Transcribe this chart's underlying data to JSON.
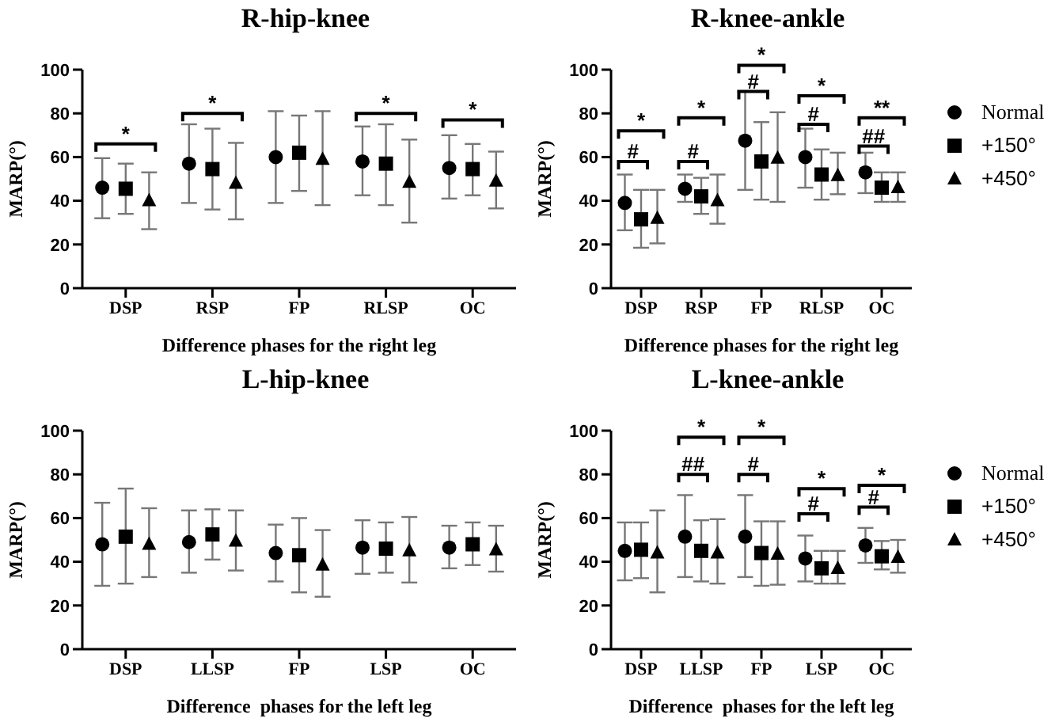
{
  "chart_data": [
    {
      "type": "scatter",
      "title": "R-hip-knee",
      "xlabel": "Difference phases for the right leg",
      "ylabel": "MARP(°)",
      "categories": [
        "DSP",
        "RSP",
        "FP",
        "RLSP",
        "OC"
      ],
      "ylim": [
        0,
        100
      ],
      "yticks": [
        0,
        20,
        40,
        60,
        80,
        100
      ],
      "legend": false,
      "series": [
        {
          "color": "#000000",
          "marker": "circle",
          "values": [
            46,
            57,
            60,
            58,
            55
          ],
          "errors": [
            [
              32,
              59.5
            ],
            [
              39,
              75
            ],
            [
              39,
              81
            ],
            [
              42.5,
              74
            ],
            [
              41,
              70
            ]
          ]
        },
        {
          "color": "#000000",
          "marker": "square",
          "values": [
            45.5,
            54.5,
            62,
            57,
            54.5
          ],
          "errors": [
            [
              34,
              57
            ],
            [
              36,
              73
            ],
            [
              44.5,
              79
            ],
            [
              38,
              75
            ],
            [
              42.5,
              66
            ]
          ]
        },
        {
          "color": "#000000",
          "marker": "triangle",
          "values": [
            40,
            48,
            59,
            48.5,
            49
          ],
          "errors": [
            [
              27,
              53
            ],
            [
              31.5,
              66.5
            ],
            [
              38,
              81
            ],
            [
              30,
              68
            ],
            [
              36.5,
              62.5
            ]
          ]
        }
      ],
      "annotations": [
        "*",
        "*",
        "*",
        "*"
      ]
    },
    {
      "type": "scatter",
      "title": "R-knee-ankle",
      "xlabel": "Difference phases for the right leg",
      "ylabel": "MARP(°)",
      "categories": [
        "DSP",
        "RSP",
        "FP",
        "RLSP",
        "OC"
      ],
      "ylim": [
        0,
        100
      ],
      "yticks": [
        0,
        20,
        40,
        60,
        80,
        100
      ],
      "legend": "right",
      "series": [
        {
          "name": "Normal",
          "color": "#000000",
          "marker": "circle",
          "values": [
            39,
            45.5,
            67.5,
            60,
            53
          ],
          "errors": [
            [
              26.5,
              52
            ],
            [
              39.5,
              52
            ],
            [
              45,
              90
            ],
            [
              46,
              73
            ],
            [
              43.5,
              62
            ]
          ]
        },
        {
          "name": "+150°",
          "color": "#000000",
          "marker": "square",
          "values": [
            31.5,
            42,
            58,
            52,
            46
          ],
          "errors": [
            [
              18.5,
              45
            ],
            [
              34,
              50.5
            ],
            [
              40.5,
              76
            ],
            [
              40.5,
              63.5
            ],
            [
              39.5,
              53
            ]
          ]
        },
        {
          "name": "+450°",
          "color": "#000000",
          "marker": "triangle",
          "values": [
            32,
            40,
            59.5,
            51.5,
            46
          ],
          "errors": [
            [
              20.5,
              45
            ],
            [
              29.5,
              52
            ],
            [
              39.5,
              80.5
            ],
            [
              43,
              62
            ],
            [
              39.5,
              53
            ]
          ]
        }
      ],
      "annotations": [
        "*",
        "#",
        "*",
        "#",
        "*",
        "#",
        "*",
        "#",
        "**",
        "##"
      ]
    },
    {
      "type": "scatter",
      "title": "L-hip-knee",
      "xlabel": "Difference  phases for the left leg",
      "ylabel": "MARP(°)",
      "categories": [
        "DSP",
        "LLSP",
        "FP",
        "LSP",
        "OC"
      ],
      "ylim": [
        0,
        100
      ],
      "yticks": [
        0,
        20,
        40,
        60,
        80,
        100
      ],
      "legend": false,
      "series": [
        {
          "color": "#000000",
          "marker": "circle",
          "values": [
            48,
            49,
            44,
            46.5,
            46.5
          ],
          "errors": [
            [
              29,
              67
            ],
            [
              35,
              63.5
            ],
            [
              31,
              57
            ],
            [
              34.5,
              59
            ],
            [
              37,
              56.5
            ]
          ]
        },
        {
          "color": "#000000",
          "marker": "square",
          "values": [
            51.5,
            52.5,
            43,
            46,
            48
          ],
          "errors": [
            [
              30,
              73.5
            ],
            [
              41,
              64
            ],
            [
              26,
              60
            ],
            [
              35,
              58
            ],
            [
              38.5,
              58
            ]
          ]
        },
        {
          "color": "#000000",
          "marker": "triangle",
          "values": [
            48,
            49.5,
            38.5,
            45,
            45.5
          ],
          "errors": [
            [
              33,
              64.5
            ],
            [
              36,
              63.5
            ],
            [
              24,
              54.5
            ],
            [
              30.5,
              60.5
            ],
            [
              35.5,
              56.5
            ]
          ]
        }
      ]
    },
    {
      "type": "scatter",
      "title": "L-knee-ankle",
      "xlabel": "Difference  phases for the left leg",
      "ylabel": "MARP(°)",
      "categories": [
        "DSP",
        "LLSP",
        "FP",
        "LSP",
        "OC"
      ],
      "ylim": [
        0,
        100
      ],
      "yticks": [
        0,
        20,
        40,
        60,
        80,
        100
      ],
      "legend": "right",
      "series": [
        {
          "name": "Normal",
          "color": "#000000",
          "marker": "circle",
          "values": [
            45,
            51.5,
            51.5,
            41.5,
            47.5
          ],
          "errors": [
            [
              31.5,
              58
            ],
            [
              33,
              70.5
            ],
            [
              33,
              70.5
            ],
            [
              31,
              52
            ],
            [
              39.5,
              55.5
            ]
          ]
        },
        {
          "name": "+150°",
          "color": "#000000",
          "marker": "square",
          "values": [
            45.5,
            45,
            44,
            37,
            42.5
          ],
          "errors": [
            [
              32.5,
              58
            ],
            [
              31,
              59
            ],
            [
              29,
              58.5
            ],
            [
              30,
              45
            ],
            [
              36.5,
              49.5
            ]
          ]
        },
        {
          "name": "+450°",
          "color": "#000000",
          "marker": "triangle",
          "values": [
            44,
            44,
            43.5,
            37,
            42
          ],
          "errors": [
            [
              26,
              63.5
            ],
            [
              30,
              59.5
            ],
            [
              29.5,
              58.5
            ],
            [
              30,
              45
            ],
            [
              35,
              50
            ]
          ]
        }
      ],
      "annotations": [
        "*",
        "##",
        "*",
        "#",
        "*",
        "#",
        "*",
        "#"
      ]
    }
  ]
}
